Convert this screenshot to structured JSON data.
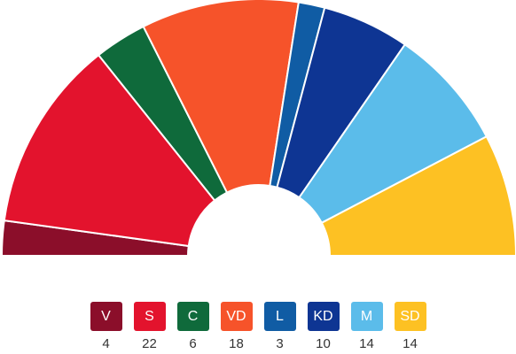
{
  "chart_data": {
    "type": "pie",
    "categories": [
      "V",
      "S",
      "C",
      "VD",
      "L",
      "KD",
      "M",
      "SD"
    ],
    "values": [
      4,
      22,
      6,
      18,
      3,
      10,
      14,
      14
    ],
    "colors": [
      "#8b0e2a",
      "#e3132d",
      "#0f6a3b",
      "#f6532a",
      "#105ca4",
      "#0e3593",
      "#5bbcea",
      "#fdc123"
    ],
    "legend_placement": "bottom"
  },
  "legend": [
    {
      "label": "V",
      "value": "4"
    },
    {
      "label": "S",
      "value": "22"
    },
    {
      "label": "C",
      "value": "6"
    },
    {
      "label": "VD",
      "value": "18"
    },
    {
      "label": "L",
      "value": "3"
    },
    {
      "label": "KD",
      "value": "10"
    },
    {
      "label": "M",
      "value": "14"
    },
    {
      "label": "SD",
      "value": "14"
    }
  ]
}
